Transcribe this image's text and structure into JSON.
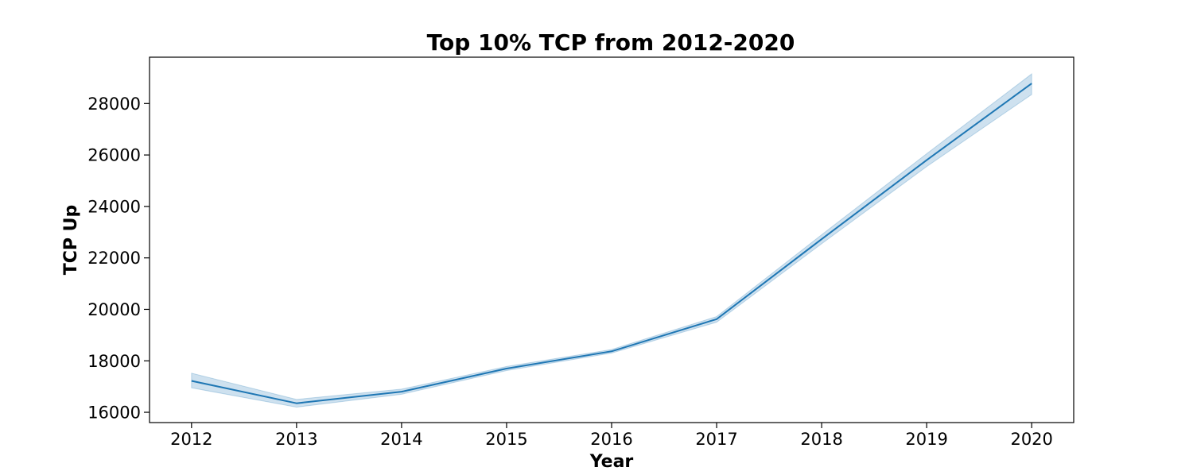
{
  "chart_data": {
    "type": "line",
    "title": "Top 10% TCP from 2012-2020",
    "xlabel": "Year",
    "ylabel": "TCP Up",
    "x": [
      2012,
      2013,
      2014,
      2015,
      2016,
      2017,
      2018,
      2019,
      2020
    ],
    "x_tick_labels": [
      "2012",
      "2013",
      "2014",
      "2015",
      "2016",
      "2017",
      "2018",
      "2019",
      "2020"
    ],
    "y_ticks": [
      16000,
      18000,
      20000,
      22000,
      24000,
      26000,
      28000
    ],
    "y_tick_labels": [
      "16000",
      "18000",
      "20000",
      "22000",
      "24000",
      "26000",
      "28000"
    ],
    "xlim": [
      2011.6,
      2020.4
    ],
    "ylim": [
      15600,
      29800
    ],
    "grid": false,
    "series": [
      {
        "values": [
          17220,
          16350,
          16800,
          17700,
          18370,
          19620,
          22730,
          25800,
          28780
        ],
        "ci_lower": [
          16950,
          16200,
          16700,
          17620,
          18300,
          19500,
          22550,
          25550,
          28350
        ],
        "ci_upper": [
          17520,
          16500,
          16900,
          17780,
          18440,
          19720,
          22900,
          26050,
          29150
        ],
        "color": "#1f77b4",
        "band_color": "#1f77b4"
      }
    ]
  }
}
